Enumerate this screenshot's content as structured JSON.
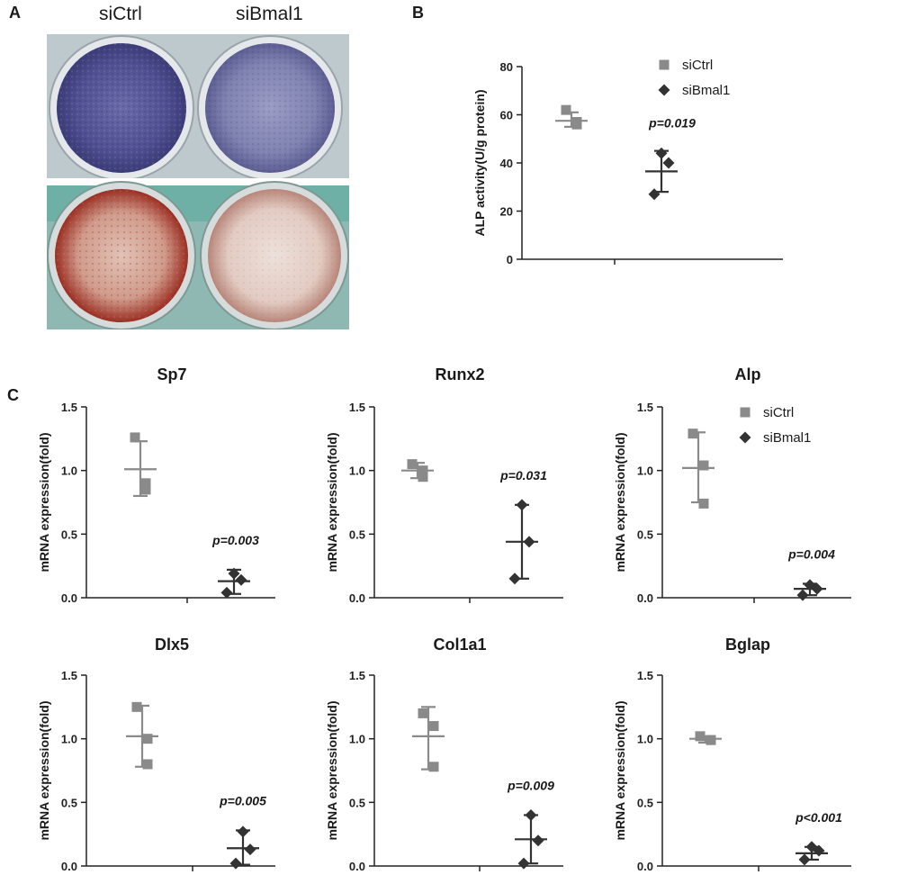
{
  "panels": {
    "a": "A",
    "b": "B",
    "c": "C"
  },
  "photo": {
    "label_left": "siCtrl",
    "label_right": "siBmal1"
  },
  "colors": {
    "siCtrl": "#8a8a8a",
    "siBmal1": "#333333"
  },
  "chart_data": [
    {
      "id": "alp-activity",
      "type": "scatter",
      "title": "",
      "ylabel": "ALP activity(U/g protein)",
      "ylim": [
        0,
        80
      ],
      "yticks": [
        0,
        20,
        40,
        60,
        80
      ],
      "legend": {
        "placement": "top-right",
        "entries": [
          "siCtrl",
          "siBmal1"
        ]
      },
      "groups": [
        {
          "name": "siCtrl",
          "points": [
            62,
            56,
            57
          ],
          "mean": 57.5,
          "sd_low": 55,
          "sd_high": 61
        },
        {
          "name": "siBmal1",
          "points": [
            44,
            40,
            27
          ],
          "mean": 36.5,
          "sd_low": 28,
          "sd_high": 45
        }
      ],
      "annotation": "p=0.019"
    },
    {
      "id": "sp7",
      "type": "scatter",
      "title": "Sp7",
      "ylabel": "mRNA expression(fold)",
      "ylim": [
        0,
        1.5
      ],
      "yticks": [
        "0.0",
        "0.5",
        "1.0",
        "1.5"
      ],
      "groups": [
        {
          "name": "siCtrl",
          "points": [
            1.26,
            0.9,
            0.85
          ],
          "mean": 1.01,
          "sd_low": 0.8,
          "sd_high": 1.23
        },
        {
          "name": "siBmal1",
          "points": [
            0.19,
            0.14,
            0.04
          ],
          "mean": 0.13,
          "sd_low": 0.03,
          "sd_high": 0.22
        }
      ],
      "annotation": "p=0.003"
    },
    {
      "id": "runx2",
      "type": "scatter",
      "title": "Runx2",
      "ylabel": "mRNA expression(fold)",
      "ylim": [
        0,
        1.5
      ],
      "yticks": [
        "0.0",
        "0.5",
        "1.0",
        "1.5"
      ],
      "groups": [
        {
          "name": "siCtrl",
          "points": [
            1.05,
            1.0,
            0.95
          ],
          "mean": 1.0,
          "sd_low": 0.94,
          "sd_high": 1.06
        },
        {
          "name": "siBmal1",
          "points": [
            0.73,
            0.44,
            0.15
          ],
          "mean": 0.44,
          "sd_low": 0.15,
          "sd_high": 0.73
        }
      ],
      "annotation": "p=0.031"
    },
    {
      "id": "alp",
      "type": "scatter",
      "title": "Alp",
      "ylabel": "mRNA expression(fold)",
      "ylim": [
        0,
        1.5
      ],
      "yticks": [
        "0.0",
        "0.5",
        "1.0",
        "1.5"
      ],
      "legend": {
        "placement": "top-right",
        "entries": [
          "siCtrl",
          "siBmal1"
        ]
      },
      "groups": [
        {
          "name": "siCtrl",
          "points": [
            1.29,
            1.04,
            0.74
          ],
          "mean": 1.02,
          "sd_low": 0.75,
          "sd_high": 1.3
        },
        {
          "name": "siBmal1",
          "points": [
            0.1,
            0.07,
            0.02
          ],
          "mean": 0.07,
          "sd_low": 0.02,
          "sd_high": 0.11
        }
      ],
      "annotation": "p=0.004"
    },
    {
      "id": "dlx5",
      "type": "scatter",
      "title": "Dlx5",
      "ylabel": "mRNA expression(fold)",
      "ylim": [
        0,
        1.5
      ],
      "yticks": [
        "0.0",
        "0.5",
        "1.0",
        "1.5"
      ],
      "groups": [
        {
          "name": "siCtrl",
          "points": [
            1.25,
            1.0,
            0.8
          ],
          "mean": 1.02,
          "sd_low": 0.78,
          "sd_high": 1.26
        },
        {
          "name": "siBmal1",
          "points": [
            0.27,
            0.13,
            0.02
          ],
          "mean": 0.14,
          "sd_low": 0.01,
          "sd_high": 0.28
        }
      ],
      "annotation": "p=0.005"
    },
    {
      "id": "col1a1",
      "type": "scatter",
      "title": "Col1a1",
      "ylabel": "mRNA expression(fold)",
      "ylim": [
        0,
        1.5
      ],
      "yticks": [
        "0.0",
        "0.5",
        "1.0",
        "1.5"
      ],
      "groups": [
        {
          "name": "siCtrl",
          "points": [
            1.2,
            1.1,
            0.78
          ],
          "mean": 1.02,
          "sd_low": 0.76,
          "sd_high": 1.25
        },
        {
          "name": "siBmal1",
          "points": [
            0.4,
            0.2,
            0.02
          ],
          "mean": 0.21,
          "sd_low": 0.02,
          "sd_high": 0.4
        }
      ],
      "annotation": "p=0.009"
    },
    {
      "id": "bglap",
      "type": "scatter",
      "title": "Bglap",
      "ylabel": "mRNA expression(fold)",
      "ylim": [
        0,
        1.5
      ],
      "yticks": [
        "0.0",
        "0.5",
        "1.0",
        "1.5"
      ],
      "groups": [
        {
          "name": "siCtrl",
          "points": [
            1.02,
            0.99,
            0.99
          ],
          "mean": 1.0,
          "sd_low": 0.97,
          "sd_high": 1.02
        },
        {
          "name": "siBmal1",
          "points": [
            0.15,
            0.12,
            0.05
          ],
          "mean": 0.1,
          "sd_low": 0.05,
          "sd_high": 0.15
        }
      ],
      "annotation": "p<0.001"
    }
  ]
}
